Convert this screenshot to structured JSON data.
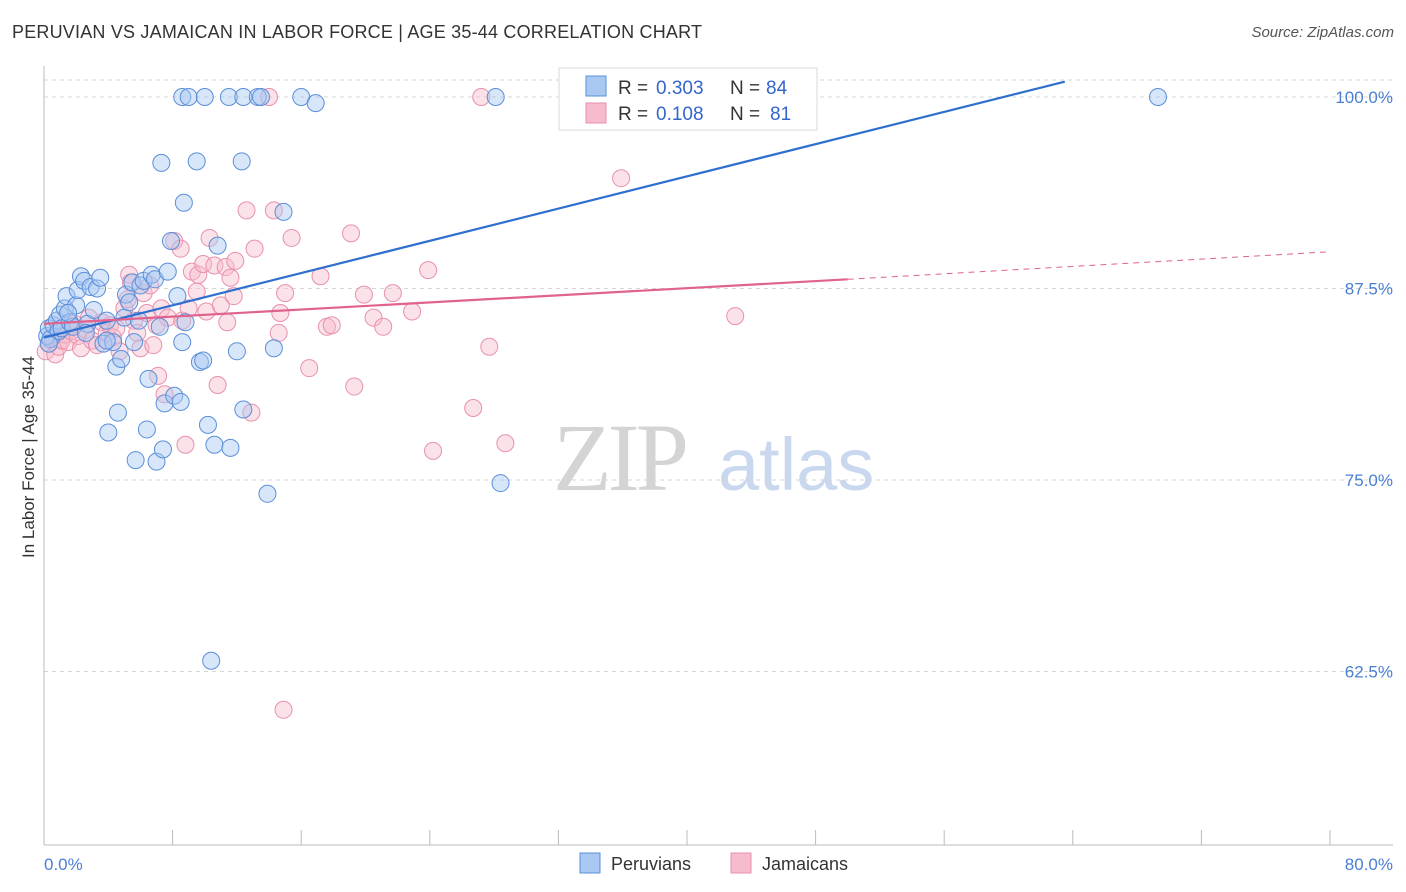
{
  "header": {
    "title": "PERUVIAN VS JAMAICAN IN LABOR FORCE | AGE 35-44 CORRELATION CHART",
    "source": "Source: ZipAtlas.com"
  },
  "legend": {
    "r_label": "R =",
    "n_label": "N =",
    "rows": [
      {
        "r": "0.303",
        "n": "84"
      },
      {
        "r": "0.108",
        "n": "81"
      }
    ]
  },
  "bottom_legend": [
    "Peruvians",
    "Jamaicans"
  ],
  "watermark": {
    "zip": "ZIP",
    "atlas": "atlas"
  },
  "colors": {
    "peruvian_fill": "#a9c8f2",
    "peruvian_stroke": "#5b8fd9",
    "peruvian_line": "#2f6fd0",
    "jamaican_fill": "#f6bccd",
    "jamaican_stroke": "#e891ad",
    "jamaican_line": "#e0628e",
    "grid": "#d6d6d6",
    "tick_label": "#4a7fd1"
  },
  "chart_data": {
    "type": "scatter",
    "title": "PERUVIAN VS JAMAICAN IN LABOR FORCE | AGE 35-44 CORRELATION CHART",
    "xlabel": "",
    "ylabel": "In Labor Force | Age 35-44",
    "xlim": [
      0,
      80
    ],
    "ylim": [
      50.5,
      101.5
    ],
    "x_tick_labels": [
      "0.0%",
      "80.0%"
    ],
    "y_ticks": [
      62.5,
      75.0,
      87.5,
      100.0
    ],
    "y_tick_labels": [
      "62.5%",
      "75.0%",
      "87.5%",
      "100.0%"
    ],
    "series": [
      {
        "name": "Peruvians",
        "R": 0.303,
        "N": 84,
        "trend": {
          "x0": 0,
          "y0": 84.3,
          "x1": 63.5,
          "y1": 101.0,
          "dashed_to": null
        },
        "points": [
          [
            0.2,
            84.4
          ],
          [
            0.3,
            84.9
          ],
          [
            0.4,
            84.2
          ],
          [
            0.6,
            85.1
          ],
          [
            0.8,
            85.4
          ],
          [
            0.9,
            84.7
          ],
          [
            1.0,
            85.8
          ],
          [
            1.1,
            84.9
          ],
          [
            1.3,
            86.2
          ],
          [
            1.4,
            87.0
          ],
          [
            1.6,
            85.3
          ],
          [
            1.8,
            85.0
          ],
          [
            2.0,
            86.4
          ],
          [
            2.1,
            87.4
          ],
          [
            2.3,
            88.3
          ],
          [
            2.5,
            88.0
          ],
          [
            2.7,
            85.2
          ],
          [
            2.9,
            87.6
          ],
          [
            3.1,
            86.1
          ],
          [
            3.3,
            87.5
          ],
          [
            3.5,
            88.2
          ],
          [
            3.7,
            83.9
          ],
          [
            3.9,
            85.4
          ],
          [
            4.0,
            78.1
          ],
          [
            4.3,
            84.0
          ],
          [
            4.5,
            82.4
          ],
          [
            4.6,
            79.4
          ],
          [
            4.8,
            82.9
          ],
          [
            5.0,
            85.6
          ],
          [
            5.1,
            87.1
          ],
          [
            5.3,
            86.6
          ],
          [
            5.5,
            87.9
          ],
          [
            5.6,
            84.0
          ],
          [
            5.7,
            76.3
          ],
          [
            5.9,
            85.4
          ],
          [
            6.0,
            87.7
          ],
          [
            6.2,
            88.0
          ],
          [
            6.4,
            78.3
          ],
          [
            6.5,
            81.6
          ],
          [
            6.7,
            88.4
          ],
          [
            6.9,
            88.1
          ],
          [
            7.0,
            76.2
          ],
          [
            7.2,
            85.0
          ],
          [
            7.3,
            95.7
          ],
          [
            7.4,
            77.0
          ],
          [
            7.5,
            80.0
          ],
          [
            7.7,
            88.6
          ],
          [
            7.9,
            90.6
          ],
          [
            8.1,
            80.5
          ],
          [
            8.3,
            87.0
          ],
          [
            8.5,
            80.1
          ],
          [
            8.6,
            84.0
          ],
          [
            8.7,
            93.1
          ],
          [
            8.8,
            85.3
          ],
          [
            8.6,
            100.0
          ],
          [
            9.0,
            100.0
          ],
          [
            9.5,
            95.8
          ],
          [
            9.7,
            82.7
          ],
          [
            9.9,
            82.8
          ],
          [
            10.0,
            100.0
          ],
          [
            10.2,
            78.6
          ],
          [
            10.4,
            63.2
          ],
          [
            10.6,
            77.3
          ],
          [
            10.8,
            90.3
          ],
          [
            11.5,
            100.0
          ],
          [
            11.6,
            77.1
          ],
          [
            12.0,
            83.4
          ],
          [
            12.3,
            95.8
          ],
          [
            12.4,
            79.6
          ],
          [
            12.4,
            100.0
          ],
          [
            13.3,
            100.0
          ],
          [
            13.5,
            100.0
          ],
          [
            13.9,
            74.1
          ],
          [
            14.3,
            83.6
          ],
          [
            14.9,
            92.5
          ],
          [
            16.0,
            100.0
          ],
          [
            16.9,
            99.6
          ],
          [
            28.1,
            100.0
          ],
          [
            28.4,
            74.8
          ],
          [
            69.3,
            100.0
          ],
          [
            0.3,
            83.9
          ],
          [
            1.5,
            85.9
          ],
          [
            2.6,
            84.6
          ],
          [
            3.9,
            84.1
          ]
        ]
      },
      {
        "name": "Jamaicans",
        "R": 0.108,
        "N": 81,
        "trend": {
          "x0": 0,
          "y0": 85.2,
          "x1": 50.0,
          "y1": 88.1,
          "dashed_to": [
            80.0,
            89.9
          ]
        },
        "points": [
          [
            0.1,
            83.4
          ],
          [
            0.3,
            83.9
          ],
          [
            0.5,
            84.3
          ],
          [
            0.7,
            83.2
          ],
          [
            0.9,
            83.7
          ],
          [
            1.1,
            84.1
          ],
          [
            1.3,
            84.5
          ],
          [
            1.5,
            84.0
          ],
          [
            1.7,
            84.7
          ],
          [
            1.9,
            85.2
          ],
          [
            2.1,
            84.4
          ],
          [
            2.3,
            83.6
          ],
          [
            2.6,
            84.8
          ],
          [
            2.8,
            85.6
          ],
          [
            3.0,
            84.1
          ],
          [
            3.3,
            83.8
          ],
          [
            3.6,
            85.3
          ],
          [
            3.9,
            84.6
          ],
          [
            4.1,
            85.1
          ],
          [
            4.3,
            84.3
          ],
          [
            4.5,
            84.9
          ],
          [
            4.7,
            83.4
          ],
          [
            5.0,
            86.2
          ],
          [
            5.2,
            86.8
          ],
          [
            5.3,
            88.4
          ],
          [
            5.4,
            87.9
          ],
          [
            5.6,
            85.4
          ],
          [
            5.8,
            84.6
          ],
          [
            6.0,
            83.6
          ],
          [
            6.2,
            87.2
          ],
          [
            6.4,
            85.9
          ],
          [
            6.6,
            87.7
          ],
          [
            6.8,
            83.8
          ],
          [
            7.0,
            85.1
          ],
          [
            7.1,
            81.8
          ],
          [
            7.3,
            86.2
          ],
          [
            7.5,
            80.6
          ],
          [
            7.7,
            85.6
          ],
          [
            8.1,
            90.6
          ],
          [
            8.5,
            90.1
          ],
          [
            8.6,
            85.4
          ],
          [
            8.8,
            77.3
          ],
          [
            9.0,
            86.2
          ],
          [
            9.2,
            88.6
          ],
          [
            9.5,
            87.3
          ],
          [
            9.6,
            88.4
          ],
          [
            9.9,
            89.1
          ],
          [
            10.1,
            86.0
          ],
          [
            10.3,
            90.8
          ],
          [
            10.6,
            89.0
          ],
          [
            10.8,
            81.2
          ],
          [
            11.0,
            86.4
          ],
          [
            11.3,
            88.9
          ],
          [
            11.4,
            85.3
          ],
          [
            11.6,
            88.2
          ],
          [
            11.8,
            87.0
          ],
          [
            11.9,
            89.3
          ],
          [
            12.6,
            92.6
          ],
          [
            12.9,
            79.4
          ],
          [
            13.1,
            90.1
          ],
          [
            14.3,
            92.6
          ],
          [
            14.6,
            84.6
          ],
          [
            14.7,
            85.9
          ],
          [
            15.0,
            87.2
          ],
          [
            15.4,
            90.8
          ],
          [
            16.5,
            82.3
          ],
          [
            17.2,
            88.3
          ],
          [
            17.6,
            85.0
          ],
          [
            17.9,
            85.1
          ],
          [
            19.1,
            91.1
          ],
          [
            19.3,
            81.1
          ],
          [
            19.9,
            87.1
          ],
          [
            20.5,
            85.6
          ],
          [
            21.7,
            87.2
          ],
          [
            22.9,
            86.0
          ],
          [
            23.9,
            88.7
          ],
          [
            24.2,
            76.9
          ],
          [
            26.7,
            79.7
          ],
          [
            27.7,
            83.7
          ],
          [
            28.7,
            77.4
          ],
          [
            35.9,
            94.7
          ]
        ],
        "high_points": [
          [
            14.0,
            100.0
          ],
          [
            27.2,
            100.0
          ],
          [
            14.9,
            60.0
          ],
          [
            21.1,
            85.0
          ],
          [
            43.0,
            85.7
          ]
        ]
      }
    ]
  }
}
